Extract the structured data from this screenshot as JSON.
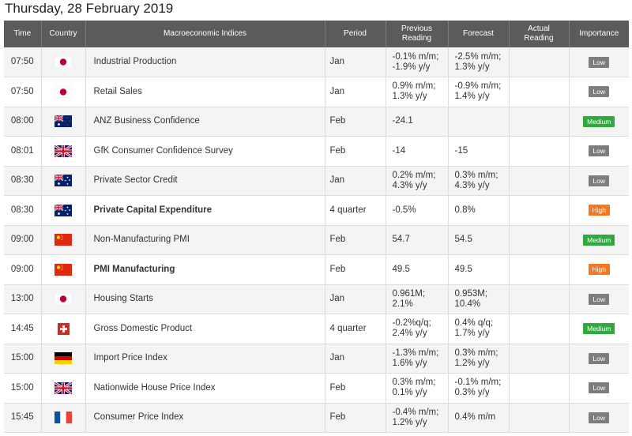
{
  "date_title": "Thursday, 28 February 2019",
  "headers": {
    "time": "Time",
    "country": "Country",
    "indices": "Macroeconomic Indices",
    "period": "Period",
    "previous": "Previous Reading",
    "forecast": "Forecast",
    "actual": "Actual Reading",
    "importance": "Importance"
  },
  "colors": {
    "header_bg": "#5b5b5b",
    "low": "#7d7d7d",
    "medium": "#2eaa3e",
    "high": "#f5781e"
  },
  "rows": [
    {
      "time": "07:50",
      "country": "Japan",
      "flag": "jp-flag-icon",
      "name": "Industrial Production",
      "bold": false,
      "period": "Jan",
      "previous": [
        "-0.1% m/m;",
        "-1.9% y/y"
      ],
      "forecast": [
        "-2.5% m/m;",
        "1.3% y/y"
      ],
      "actual": "",
      "importance": "Low"
    },
    {
      "time": "07:50",
      "country": "Japan",
      "flag": "jp-flag-icon",
      "name": "Retail Sales",
      "bold": false,
      "period": "Jan",
      "previous": [
        "0.9% m/m;",
        "1.3% y/y"
      ],
      "forecast": [
        "-0.9% m/m;",
        "1.4% y/y"
      ],
      "actual": "",
      "importance": "Low"
    },
    {
      "time": "08:00",
      "country": "New Zealand",
      "flag": "nz-flag-icon",
      "name": "ANZ Business Confidence",
      "bold": false,
      "period": "Feb",
      "previous": [
        "-24.1"
      ],
      "forecast": [],
      "actual": "",
      "importance": "Medium"
    },
    {
      "time": "08:01",
      "country": "United Kingdom",
      "flag": "uk-flag-icon",
      "name": "GfK Consumer Confidence Survey",
      "bold": false,
      "period": "Feb",
      "previous": [
        "-14"
      ],
      "forecast": [
        "-15"
      ],
      "actual": "",
      "importance": "Low"
    },
    {
      "time": "08:30",
      "country": "Australia",
      "flag": "au-flag-icon",
      "name": "Private Sector Credit",
      "bold": false,
      "period": "Jan",
      "previous": [
        "0.2% m/m;",
        "4.3% y/y"
      ],
      "forecast": [
        "0.3% m/m;",
        "4.3% y/y"
      ],
      "actual": "",
      "importance": "Low"
    },
    {
      "time": "08:30",
      "country": "Australia",
      "flag": "au-flag-icon",
      "name": "Private Capital Expenditure",
      "bold": true,
      "period": "4 quarter",
      "previous": [
        "-0.5%"
      ],
      "forecast": [
        "0.8%"
      ],
      "actual": "",
      "importance": "High"
    },
    {
      "time": "09:00",
      "country": "China",
      "flag": "cn-flag-icon",
      "name": "Non-Manufacturing PMI",
      "bold": false,
      "period": "Feb",
      "previous": [
        "54.7"
      ],
      "forecast": [
        "54.5"
      ],
      "actual": "",
      "importance": "Medium"
    },
    {
      "time": "09:00",
      "country": "China",
      "flag": "cn-flag-icon",
      "name": "PMI Manufacturing",
      "bold": true,
      "period": "Feb",
      "previous": [
        "49.5"
      ],
      "forecast": [
        "49.5"
      ],
      "actual": "",
      "importance": "High"
    },
    {
      "time": "13:00",
      "country": "Japan",
      "flag": "jp-flag-icon",
      "name": "Housing Starts",
      "bold": false,
      "period": "Jan",
      "previous": [
        "0.961M;",
        "2.1%"
      ],
      "forecast": [
        "0.953M;",
        "10.4%"
      ],
      "actual": "",
      "importance": "Low"
    },
    {
      "time": "14:45",
      "country": "Switzerland",
      "flag": "ch-flag-icon",
      "name": "Gross Domestic Product",
      "bold": false,
      "period": "4 quarter",
      "previous": [
        "-0.2%q/q;",
        "2.4% y/y"
      ],
      "forecast": [
        "0.4% q/q;",
        "1.7% y/y"
      ],
      "actual": "",
      "importance": "Medium"
    },
    {
      "time": "15:00",
      "country": "Germany",
      "flag": "de-flag-icon",
      "name": "Import Price Index",
      "bold": false,
      "period": "Jan",
      "previous": [
        "-1.3% m/m;",
        "1.6% y/y"
      ],
      "forecast": [
        "0.3% m/m;",
        "1.2% y/y"
      ],
      "actual": "",
      "importance": "Low"
    },
    {
      "time": "15:00",
      "country": "United Kingdom",
      "flag": "uk-flag-icon",
      "name": "Nationwide House Price Index",
      "bold": false,
      "period": "Feb",
      "previous": [
        "0.3% m/m;",
        "0.1% y/y"
      ],
      "forecast": [
        "-0.1% m/m;",
        "0.3% y/y"
      ],
      "actual": "",
      "importance": "Low"
    },
    {
      "time": "15:45",
      "country": "France",
      "flag": "fr-flag-icon",
      "name": "Consumer Price Index",
      "bold": false,
      "period": "Feb",
      "previous": [
        "-0.4% m/m;",
        "1.2% y/y"
      ],
      "forecast": [
        "0.4% m/m"
      ],
      "actual": "",
      "importance": "Low"
    }
  ]
}
